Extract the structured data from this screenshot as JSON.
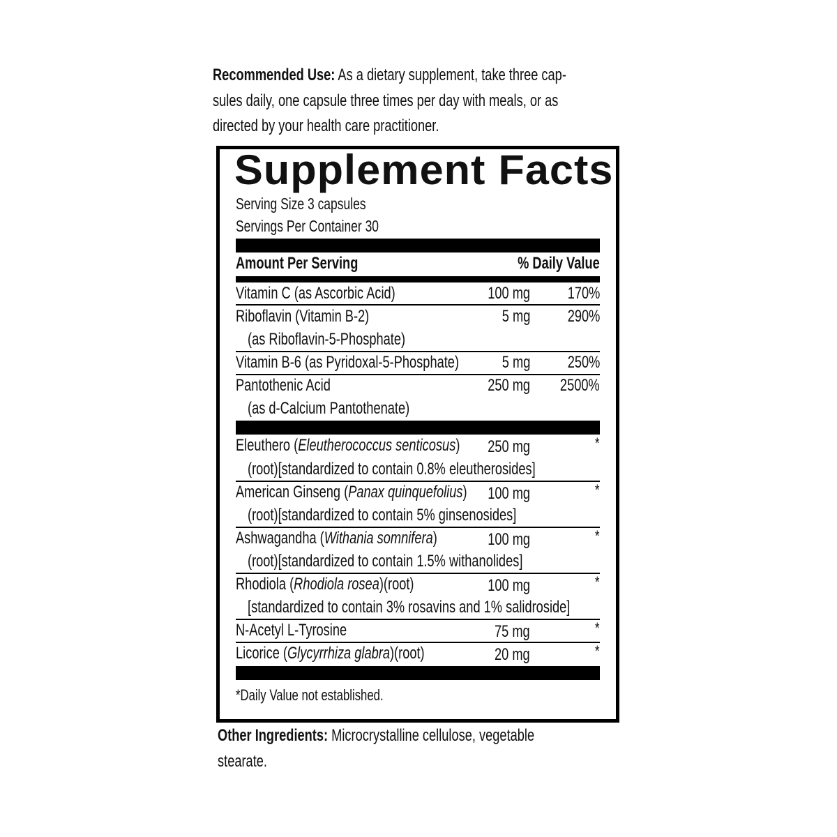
{
  "recommended_use": {
    "label": "Recommended Use:",
    "line1": " As a dietary supplement, take three cap-",
    "line2": "sules daily, one capsule three times per day with meals, or as",
    "line3": "directed by your health care practitioner."
  },
  "facts": {
    "title": "Supplement Facts",
    "serving_size": "Serving Size 3 capsules",
    "servings_per_container": "Servings Per Container 30",
    "header_amount": "Amount Per Serving",
    "header_dv": "% Daily Value",
    "vitamins": [
      {
        "name": "Vitamin C (as Ascorbic Acid)",
        "amount": "100 mg",
        "dv": "170%"
      },
      {
        "name": "Riboflavin (Vitamin B-2)",
        "sub": "(as Riboflavin-5-Phosphate)",
        "amount": "5 mg",
        "dv": "290%"
      },
      {
        "name": "Vitamin B-6 (as Pyridoxal-5-Phosphate)",
        "amount": "5 mg",
        "dv": "250%"
      },
      {
        "name": "Pantothenic Acid",
        "sub": "(as d-Calcium Pantothenate)",
        "amount": "250 mg",
        "dv": "2500%"
      }
    ],
    "herbs": [
      {
        "name": "Eleuthero (",
        "latin": "Eleutherococcus senticosus",
        "after": ")",
        "sub": "(root)[standardized to contain 0.8% eleutherosides]",
        "amount": "250 mg",
        "dv": "*"
      },
      {
        "name": "American Ginseng (",
        "latin": "Panax quinquefolius",
        "after": ")",
        "sub": "(root)[standardized to contain 5% ginsenosides]",
        "amount": "100 mg",
        "dv": "*"
      },
      {
        "name": "Ashwagandha (",
        "latin": "Withania somnifera",
        "after": ")",
        "sub": "(root)[standardized to contain 1.5% withanolides]",
        "amount": "100 mg",
        "dv": "*"
      },
      {
        "name": "Rhodiola (",
        "latin": "Rhodiola rosea",
        "after": ")(root)",
        "sub": "[standardized to contain 3% rosavins and 1% salidroside]",
        "amount": "100 mg",
        "dv": "*"
      },
      {
        "name": "N-Acetyl L-Tyrosine",
        "amount": "75 mg",
        "dv": "*"
      },
      {
        "name": "Licorice (",
        "latin": "Glycyrrhiza glabra",
        "after": ")(root)",
        "amount": "20 mg",
        "dv": "*"
      }
    ],
    "footnote": "*Daily Value not established."
  },
  "other_ingredients": {
    "label": "Other Ingredients:",
    "line1": " Microcrystalline cellulose,  vegetable",
    "line2": "stearate."
  }
}
